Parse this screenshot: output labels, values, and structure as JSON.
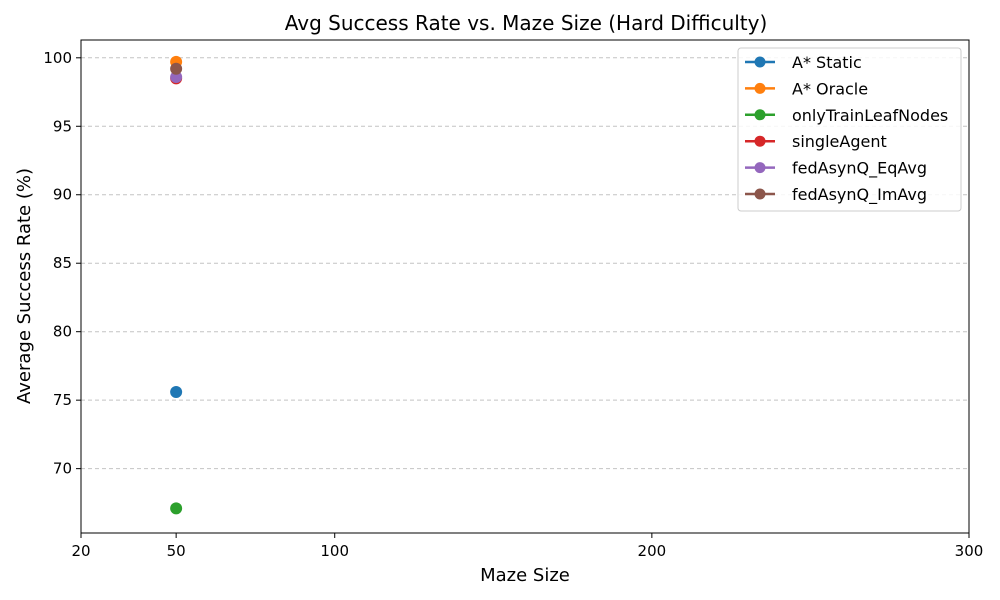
{
  "chart_data": {
    "type": "line",
    "title": "Avg Success Rate vs. Maze Size (Hard Difficulty)",
    "xlabel": "Maze Size",
    "ylabel": "Average Success Rate (%)",
    "x_scale": "linear",
    "xlim": [
      20,
      300
    ],
    "ylim": [
      65.3,
      101.3
    ],
    "x_ticks": [
      20,
      50,
      100,
      200,
      300
    ],
    "y_ticks": [
      70,
      75,
      80,
      85,
      90,
      95,
      100
    ],
    "grid": {
      "y": true,
      "x": false,
      "style": "dashed"
    },
    "legend_position": "top-right",
    "series": [
      {
        "name": "A* Static",
        "color": "#1f77b4",
        "x": [
          50
        ],
        "y": [
          75.6
        ]
      },
      {
        "name": "A* Oracle",
        "color": "#ff7f0e",
        "x": [
          50
        ],
        "y": [
          99.7
        ]
      },
      {
        "name": "onlyTrainLeafNodes",
        "color": "#2ca02c",
        "x": [
          50
        ],
        "y": [
          67.1
        ]
      },
      {
        "name": "singleAgent",
        "color": "#d62728",
        "x": [
          50
        ],
        "y": [
          98.5
        ]
      },
      {
        "name": "fedAsynQ_EqAvg",
        "color": "#9467bd",
        "x": [
          50
        ],
        "y": [
          98.6
        ]
      },
      {
        "name": "fedAsynQ_ImAvg",
        "color": "#8c564b",
        "x": [
          50
        ],
        "y": [
          99.2
        ]
      }
    ]
  }
}
